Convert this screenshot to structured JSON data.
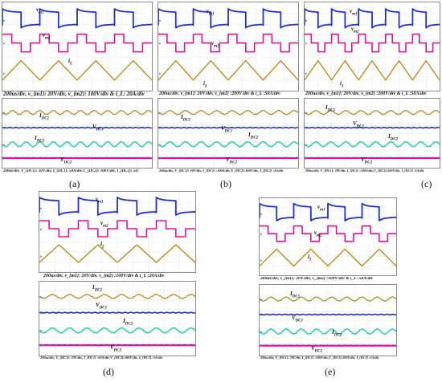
{
  "colors": {
    "grid": "#b9c6d6",
    "blue": "#1f2fd1",
    "magenta": "#e0109f",
    "gold": "#b8860b",
    "cyan": "#1fd5a8",
    "pink": "#e0109f",
    "axis_marker": "#3a8fd1"
  },
  "chart_data": [
    {
      "id": "a",
      "letter": "(a)",
      "type": "line",
      "top_caption": "200us/div, v_{m1}: 20V/div, v_{m2}: 100V/div & i_L: 20A/div",
      "bottom_caption": "200us/div, V_{DC1}: 20V/div, I_{DC1}: 50A/div,V_{DC2}: 100V/div, I_{DC2}: 5A/",
      "labels_top": [
        "v_m1",
        "v_m2",
        "i_L"
      ],
      "labels_bottom": [
        "I_DC1",
        "V_DC1",
        "I_DC2",
        "V_DC2"
      ],
      "series": [
        {
          "name": "v_m1",
          "shape": "square-overshoot",
          "periods": 4
        },
        {
          "name": "v_m2",
          "shape": "multilevel",
          "periods": 4
        },
        {
          "name": "i_L",
          "shape": "triangle",
          "periods": 4
        },
        {
          "name": "I_DC1",
          "shape": "ripple",
          "periods": 11
        },
        {
          "name": "V_DC1",
          "shape": "flat"
        },
        {
          "name": "I_DC2",
          "shape": "ripple",
          "periods": 11
        },
        {
          "name": "V_DC2",
          "shape": "flat"
        }
      ]
    },
    {
      "id": "b",
      "letter": "(b)",
      "type": "line",
      "top_caption": "200us/div, v_{m1}: 20V/div, v_{m2} :200V/div & i_L :50A/div",
      "bottom_caption": "200us/div, V_{DC1}: 20V/div, I_{DC1} :100A/div,V_{DC2}:100V/div, I_{DC2} :2A/div",
      "labels_top": [
        "v_m1",
        "v_m2",
        "i_L"
      ],
      "labels_bottom": [
        "I_DC1",
        "V_DC1",
        "I_DC2",
        "V_DC2"
      ],
      "series": [
        {
          "name": "v_m1",
          "shape": "square-overshoot",
          "periods": 4
        },
        {
          "name": "v_m2",
          "shape": "multilevel",
          "periods": 4
        },
        {
          "name": "i_L",
          "shape": "triangle",
          "periods": 4
        },
        {
          "name": "I_DC1",
          "shape": "ripple",
          "periods": 9
        },
        {
          "name": "V_DC1",
          "shape": "flat"
        },
        {
          "name": "I_DC2",
          "shape": "ripple",
          "periods": 9
        },
        {
          "name": "V_DC2",
          "shape": "flat"
        }
      ]
    },
    {
      "id": "c",
      "letter": "(c)",
      "type": "line",
      "top_caption": "200us/div, v_{m1}: 20V/div, v_{m2} :200V/div & i_L :50A/div",
      "bottom_caption": "200us/div, V_{DC1}: 20V/div, I_{DC1} :100A/div,V_{DC2}:100V/div, I_{DC2} :5A/div",
      "labels_top": [
        "v_m1",
        "v_m2",
        "i_L"
      ],
      "labels_bottom": [
        "I_DC1",
        "V_DC1",
        "I_DC2",
        "V_DC2"
      ],
      "series": [
        {
          "name": "v_m1",
          "shape": "square-overshoot",
          "periods": 5
        },
        {
          "name": "v_m2",
          "shape": "multilevel",
          "periods": 5
        },
        {
          "name": "i_L",
          "shape": "triangle",
          "periods": 5
        },
        {
          "name": "I_DC1",
          "shape": "ripple",
          "periods": 9
        },
        {
          "name": "V_DC1",
          "shape": "flat"
        },
        {
          "name": "I_DC2",
          "shape": "ripple",
          "periods": 9
        },
        {
          "name": "V_DC2",
          "shape": "flat"
        }
      ]
    },
    {
      "id": "d",
      "letter": "(d)",
      "type": "line",
      "top_caption": "200us/div, v_{m1}: 20V/div, v_{m2} :100V/div & i_L :20A/div",
      "bottom_caption": "200us/div, V_{DC1}: 20V/div, I_{DC1} :50A/div,V_{DC2}:100V/div, I_{DC2} :5A/div",
      "labels_top": [
        "v_m1",
        "v_m2",
        "i_L"
      ],
      "labels_bottom": [
        "I_DC1",
        "V_DC1",
        "I_DC2",
        "V_DC2"
      ],
      "series": [
        {
          "name": "v_m1",
          "shape": "square-overshoot",
          "periods": 4
        },
        {
          "name": "v_m2",
          "shape": "multilevel",
          "periods": 4
        },
        {
          "name": "i_L",
          "shape": "triangle",
          "periods": 4
        },
        {
          "name": "I_DC1",
          "shape": "ripple",
          "periods": 9
        },
        {
          "name": "V_DC1",
          "shape": "flat"
        },
        {
          "name": "I_DC2",
          "shape": "ripple",
          "periods": 9
        },
        {
          "name": "V_DC2",
          "shape": "flat"
        }
      ]
    },
    {
      "id": "e",
      "letter": "(e)",
      "type": "line",
      "top_caption": "200us/div, v_{m1}: 20V/div, v_{m2} :100V/div & i_L :50A/div",
      "bottom_caption": "200us/div, V_{DC1}: 20V/div, I_{DC1} :100A/div,V_{DC2}:100V/div, I_{DC2} :5A/div",
      "labels_top": [
        "v_m1",
        "v_m2",
        "i_L"
      ],
      "labels_bottom": [
        "I_DC1",
        "V_DC1",
        "I_DC2",
        "V_DC2"
      ],
      "series": [
        {
          "name": "v_m1",
          "shape": "square-overshoot",
          "periods": 4
        },
        {
          "name": "v_m2",
          "shape": "multilevel",
          "periods": 4
        },
        {
          "name": "i_L",
          "shape": "triangle",
          "periods": 4
        },
        {
          "name": "I_DC1",
          "shape": "ripple",
          "periods": 9
        },
        {
          "name": "V_DC1",
          "shape": "flat"
        },
        {
          "name": "I_DC2",
          "shape": "ripple",
          "periods": 9
        },
        {
          "name": "V_DC2",
          "shape": "flat"
        }
      ]
    }
  ]
}
